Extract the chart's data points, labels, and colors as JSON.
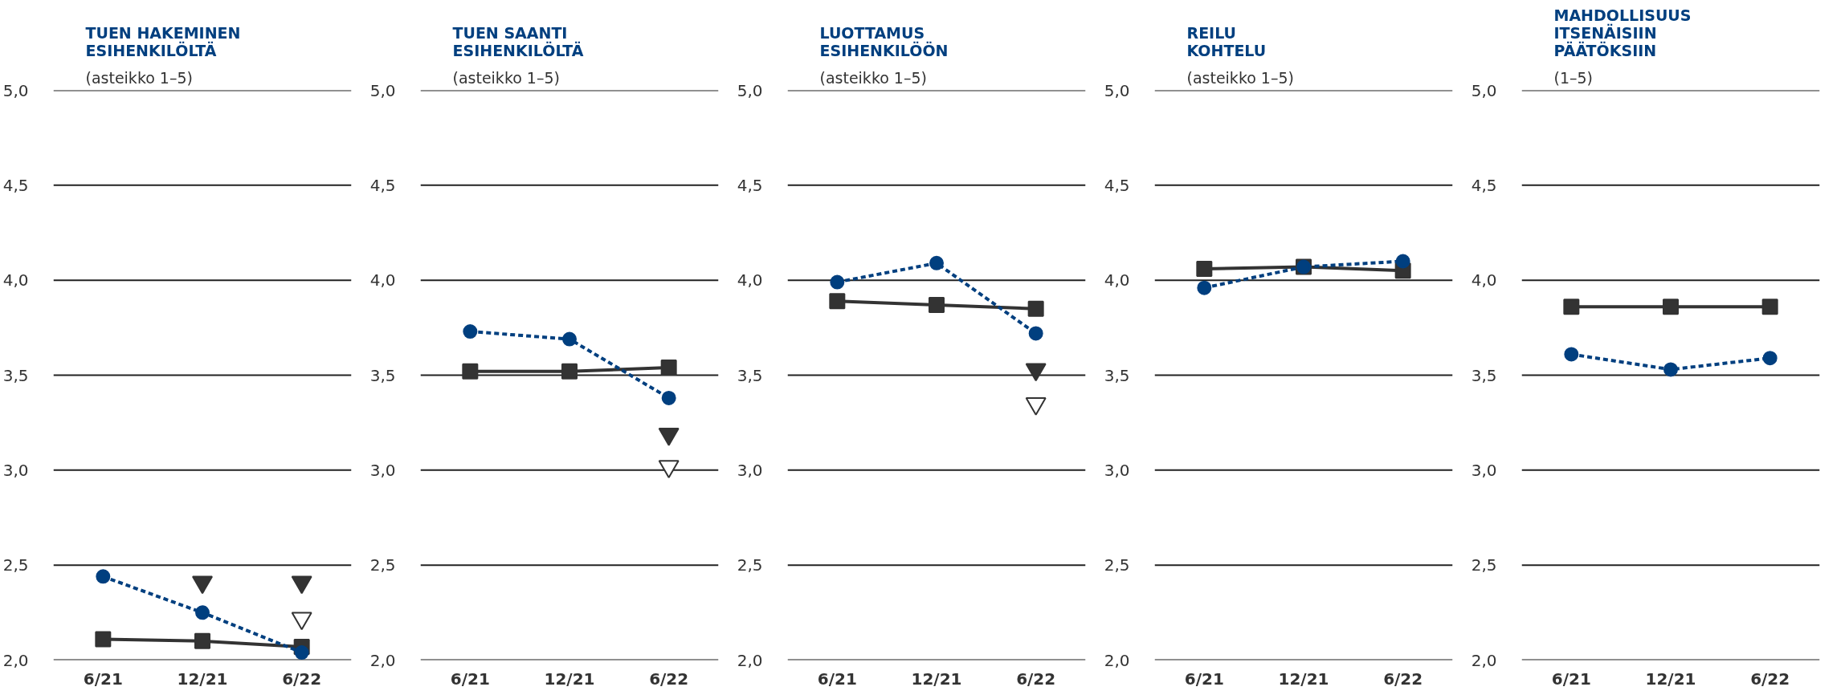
{
  "chart_data": [
    {
      "type": "line",
      "title": "TUEN HAKEMINEN\nESIHENKILÖLTÄ",
      "subtitle": "(asteikko 1–5)",
      "categories": [
        "6/21",
        "12/21",
        "6/22"
      ],
      "ylim": [
        2,
        5
      ],
      "yticks": [
        {
          "value": 2,
          "label": "2,0"
        },
        {
          "value": 2.5,
          "label": "2,5"
        },
        {
          "value": 3,
          "label": "3,0"
        },
        {
          "value": 3.5,
          "label": "3,5"
        },
        {
          "value": 4,
          "label": "4,0"
        },
        {
          "value": 4.5,
          "label": "4,5"
        },
        {
          "value": 5,
          "label": "5,0"
        }
      ],
      "grid": "y",
      "series": [
        {
          "color": "#333333",
          "marker": "square",
          "line_style": "solid",
          "values": [
            2.11,
            2.1,
            2.07
          ]
        },
        {
          "color": "#003f7f",
          "marker": "circle",
          "line_style": "dashed",
          "values": [
            2.44,
            2.25,
            2.04
          ]
        },
        {
          "type": "scatter",
          "color": "#333333",
          "marker": "triangle",
          "values": [
            null,
            2.41,
            2.41
          ]
        },
        {
          "type": "scatter",
          "color": "#ffffff",
          "marker": "triangle",
          "values": [
            null,
            null,
            2.22
          ]
        }
      ]
    },
    {
      "type": "line",
      "title": "TUEN SAANTI\nESIHENKILÖLTÄ",
      "subtitle": "(asteikko 1–5)",
      "categories": [
        "6/21",
        "12/21",
        "6/22"
      ],
      "ylim": [
        2,
        5
      ],
      "yticks": [
        {
          "value": 2,
          "label": "2,0"
        },
        {
          "value": 2.5,
          "label": "2,5"
        },
        {
          "value": 3,
          "label": "3,0"
        },
        {
          "value": 3.5,
          "label": "3,5"
        },
        {
          "value": 4,
          "label": "4,0"
        },
        {
          "value": 4.5,
          "label": "4,5"
        },
        {
          "value": 5,
          "label": "5,0"
        }
      ],
      "grid": "y",
      "series": [
        {
          "color": "#333333",
          "marker": "square",
          "line_style": "solid",
          "values": [
            3.52,
            3.52,
            3.54
          ]
        },
        {
          "color": "#003f7f",
          "marker": "circle",
          "line_style": "dashed",
          "values": [
            3.73,
            3.69,
            3.38
          ]
        },
        {
          "type": "scatter",
          "color": "#333333",
          "marker": "triangle",
          "values": [
            null,
            null,
            3.19
          ]
        },
        {
          "type": "scatter",
          "color": "#ffffff",
          "marker": "triangle",
          "values": [
            null,
            null,
            3.02
          ]
        }
      ]
    },
    {
      "type": "line",
      "title": "LUOTTAMUS\nESIHENKILÖÖN",
      "subtitle": "(asteikko 1–5)",
      "categories": [
        "6/21",
        "12/21",
        "6/22"
      ],
      "ylim": [
        2,
        5
      ],
      "yticks": [
        {
          "value": 2,
          "label": "2,0"
        },
        {
          "value": 2.5,
          "label": "2,5"
        },
        {
          "value": 3,
          "label": "3,0"
        },
        {
          "value": 3.5,
          "label": "3,5"
        },
        {
          "value": 4,
          "label": "4,0"
        },
        {
          "value": 4.5,
          "label": "4,5"
        },
        {
          "value": 5,
          "label": "5,0"
        }
      ],
      "grid": "y",
      "series": [
        {
          "color": "#333333",
          "marker": "square",
          "line_style": "solid",
          "values": [
            3.89,
            3.87,
            3.85
          ]
        },
        {
          "color": "#003f7f",
          "marker": "circle",
          "line_style": "dashed",
          "values": [
            3.99,
            4.09,
            3.72
          ]
        },
        {
          "type": "scatter",
          "color": "#333333",
          "marker": "triangle",
          "values": [
            null,
            null,
            3.53
          ]
        },
        {
          "type": "scatter",
          "color": "#ffffff",
          "marker": "triangle",
          "values": [
            null,
            null,
            3.35
          ]
        }
      ]
    },
    {
      "type": "line",
      "title": "REILU\nKOHTELU",
      "subtitle": "(asteikko 1–5)",
      "categories": [
        "6/21",
        "12/21",
        "6/22"
      ],
      "ylim": [
        2,
        5
      ],
      "yticks": [
        {
          "value": 2,
          "label": "2,0"
        },
        {
          "value": 2.5,
          "label": "2,5"
        },
        {
          "value": 3,
          "label": "3,0"
        },
        {
          "value": 3.5,
          "label": "3,5"
        },
        {
          "value": 4,
          "label": "4,0"
        },
        {
          "value": 4.5,
          "label": "4,5"
        },
        {
          "value": 5,
          "label": "5,0"
        }
      ],
      "grid": "y",
      "series": [
        {
          "color": "#333333",
          "marker": "square",
          "line_style": "solid",
          "values": [
            4.06,
            4.07,
            4.05
          ]
        },
        {
          "color": "#003f7f",
          "marker": "circle",
          "line_style": "dashed",
          "values": [
            3.96,
            4.07,
            4.1
          ]
        }
      ]
    },
    {
      "type": "line",
      "title": "MAHDOLLISUUS\nITSENÄISIIN\nPÄÄTÖKSIIN",
      "subtitle": "(1–5)",
      "categories": [
        "6/21",
        "12/21",
        "6/22"
      ],
      "ylim": [
        2,
        5
      ],
      "yticks": [
        {
          "value": 2,
          "label": "2,0"
        },
        {
          "value": 2.5,
          "label": "2,5"
        },
        {
          "value": 3,
          "label": "3,0"
        },
        {
          "value": 3.5,
          "label": "3,5"
        },
        {
          "value": 4,
          "label": "4,0"
        },
        {
          "value": 4.5,
          "label": "4,5"
        },
        {
          "value": 5,
          "label": "5,0"
        }
      ],
      "grid": "y",
      "series": [
        {
          "color": "#333333",
          "marker": "square",
          "line_style": "solid",
          "values": [
            3.86,
            3.86,
            3.86
          ]
        },
        {
          "color": "#003f7f",
          "marker": "circle",
          "line_style": "dashed",
          "values": [
            3.61,
            3.53,
            3.59
          ]
        }
      ]
    }
  ]
}
